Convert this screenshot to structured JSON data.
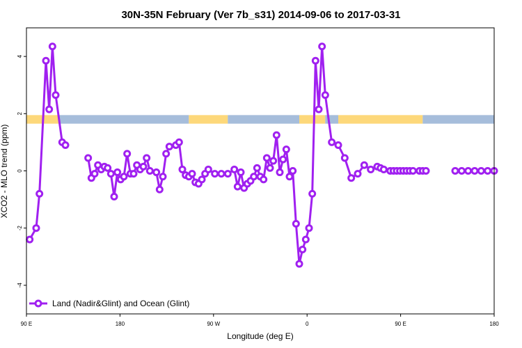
{
  "chart_data": {
    "type": "line",
    "title": "30N-35N February (Ver 7b_s31)   2014-09-06 to 2017-03-31",
    "xlabel": "Longitude (deg E)",
    "ylabel": "XCO2 - MLO trend (ppm)",
    "xlim": [
      90,
      450
    ],
    "ylim": [
      -5,
      5
    ],
    "x_ticks": [
      {
        "value": 90,
        "label": "90 E"
      },
      {
        "value": 162,
        "label": "180"
      },
      {
        "value": 234,
        "label": "90 W"
      },
      {
        "value": 306,
        "label": "0"
      },
      {
        "value": 378,
        "label": "90 E"
      },
      {
        "value": 450,
        "label": "180"
      }
    ],
    "y_ticks": [
      {
        "value": -4,
        "label": "-4"
      },
      {
        "value": -2,
        "label": "-2"
      },
      {
        "value": 0,
        "label": "0"
      },
      {
        "value": 2,
        "label": "2"
      },
      {
        "value": 4,
        "label": "4"
      }
    ],
    "grid": false,
    "legend_position": "bottom-left",
    "series": [
      {
        "name": "Land (Nadir&Glint) and Ocean (Glint)",
        "color": "#a020f0",
        "x": [
          92.5,
          97.5,
          100,
          105,
          107.5,
          110,
          112.5,
          117.5,
          120,
          137.5,
          140,
          142.5,
          145,
          147.5,
          150,
          152.5,
          155,
          157.5,
          160,
          162.5,
          165,
          167.5,
          170,
          172.5,
          175,
          177.5,
          180,
          182.5,
          185,
          190,
          192.5,
          195,
          197.5,
          200,
          205,
          207.5,
          210,
          212.5,
          215,
          217.5,
          220,
          222.5,
          225,
          227.5,
          230,
          235,
          240,
          245,
          250,
          252.5,
          255,
          257.5,
          260,
          262.5,
          265,
          267.5,
          270,
          272.5,
          275,
          277.5,
          280,
          282.5,
          285,
          287.5,
          290,
          292.5,
          295,
          297.5,
          300,
          302.5,
          305,
          307.5,
          310,
          312.5,
          315,
          317.5,
          320,
          325,
          330,
          335,
          340,
          345,
          350,
          355,
          360,
          362.5,
          365,
          370,
          372.5,
          375,
          377.5,
          380,
          382.5,
          385,
          387.5,
          392.5,
          395,
          397.5,
          420,
          425,
          430,
          435,
          440,
          445,
          450
        ],
        "y": [
          -2.4,
          -2.0,
          -0.8,
          3.85,
          2.15,
          4.35,
          2.65,
          1.0,
          0.9,
          0.45,
          -0.25,
          -0.1,
          0.2,
          0.05,
          0.15,
          0.1,
          -0.1,
          -0.9,
          -0.05,
          -0.3,
          -0.2,
          0.6,
          -0.1,
          -0.1,
          0.2,
          0.05,
          0.15,
          0.45,
          0.0,
          -0.05,
          -0.65,
          -0.2,
          0.6,
          0.85,
          0.9,
          1.0,
          0.05,
          -0.15,
          -0.2,
          -0.1,
          -0.4,
          -0.45,
          -0.3,
          -0.1,
          0.05,
          -0.1,
          -0.1,
          -0.1,
          0.05,
          -0.55,
          -0.05,
          -0.6,
          -0.45,
          -0.35,
          -0.2,
          0.1,
          -0.2,
          -0.3,
          0.45,
          0.1,
          0.35,
          1.25,
          -0.05,
          0.4,
          0.75,
          -0.2,
          0.0,
          -1.85,
          -3.25,
          -2.75,
          -2.4,
          -2.0,
          -0.8,
          3.85,
          2.15,
          4.35,
          2.65,
          1.0,
          0.9,
          0.45,
          -0.25,
          -0.1,
          0.2,
          0.05,
          0.15,
          0.1,
          0.05,
          0.0,
          0.0,
          0.0,
          0.0,
          0.0,
          0.0,
          0.0,
          0.0,
          0.0,
          0.0,
          0.0,
          0.0,
          0.0,
          0.0,
          0.0,
          0.0,
          0.0,
          0.0
        ]
      }
    ],
    "band": {
      "y_range": [
        1.65,
        1.95
      ],
      "ocean_color": "#a6bddb",
      "land_color": "#fdd87a",
      "segments": [
        {
          "type": "land",
          "x": [
            90,
            115
          ]
        },
        {
          "type": "ocean",
          "x": [
            115,
            215
          ]
        },
        {
          "type": "land",
          "x": [
            215,
            245
          ]
        },
        {
          "type": "ocean",
          "x": [
            245,
            300
          ]
        },
        {
          "type": "land",
          "x": [
            300,
            320
          ]
        },
        {
          "type": "ocean",
          "x": [
            320,
            330
          ]
        },
        {
          "type": "land",
          "x": [
            330,
            395
          ]
        },
        {
          "type": "ocean",
          "x": [
            395,
            450
          ]
        }
      ]
    }
  }
}
